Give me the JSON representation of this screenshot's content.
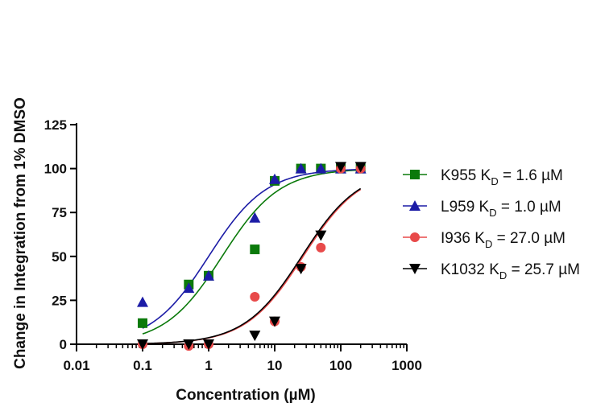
{
  "chart_data": {
    "type": "scatter",
    "title": "",
    "xlabel": "Concentration (µM)",
    "ylabel": "Change in Integration from 1% DMSO",
    "xscale": "log",
    "xlim": [
      0.01,
      1000
    ],
    "ylim": [
      0,
      125
    ],
    "xticks": [
      "0.01",
      "0.1",
      "1",
      "10",
      "100",
      "1000"
    ],
    "yticks": [
      "0",
      "25",
      "50",
      "75",
      "100",
      "125"
    ],
    "legend_position": "right",
    "grid": false,
    "series": [
      {
        "name": "K955",
        "legend_label": {
          "prefix": "K955 K",
          "sub": "D",
          "suffix": " = 1.6 µM"
        },
        "marker": "square",
        "color": "#0b7a0b",
        "kd": 1.6,
        "x": [
          0.1,
          0.5,
          1,
          5,
          10,
          25,
          50,
          100,
          200
        ],
        "y": [
          12,
          34,
          39,
          54,
          93,
          100,
          100,
          100,
          100
        ]
      },
      {
        "name": "L959",
        "legend_label": {
          "prefix": "L959 K",
          "sub": "D",
          "suffix": " = 1.0 µM"
        },
        "marker": "triangle-up",
        "color": "#1c1ca6",
        "kd": 1.0,
        "x": [
          0.1,
          0.5,
          1,
          5,
          10,
          25,
          50,
          100,
          200
        ],
        "y": [
          24,
          32,
          39,
          72,
          94,
          100,
          100,
          100,
          100
        ]
      },
      {
        "name": "I936",
        "legend_label": {
          "prefix": "I936 K",
          "sub": "D",
          "suffix": " = 27.0 µM"
        },
        "marker": "circle",
        "color": "#e84a4a",
        "kd": 27.0,
        "x": [
          0.1,
          0.5,
          1,
          5,
          10,
          25,
          50,
          100,
          200
        ],
        "y": [
          0,
          -1,
          0,
          27,
          13,
          44,
          55,
          100,
          100
        ]
      },
      {
        "name": "K1032",
        "legend_label": {
          "prefix": "K1032 K",
          "sub": "D",
          "suffix": " = 25.7 µM"
        },
        "marker": "triangle-down",
        "color": "#000000",
        "kd": 25.7,
        "x": [
          0.1,
          0.5,
          1,
          5,
          10,
          25,
          50,
          100,
          200
        ],
        "y": [
          0,
          0,
          0,
          5,
          13,
          43,
          62,
          101,
          101
        ]
      }
    ]
  }
}
